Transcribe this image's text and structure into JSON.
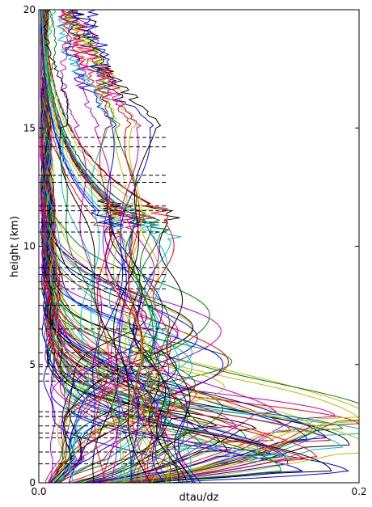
{
  "chart_data": {
    "type": "line",
    "title": "",
    "xlabel": "dtau/dz",
    "ylabel": "height (km)",
    "xlim": [
      0.0,
      0.2
    ],
    "ylim": [
      0,
      20
    ],
    "x_ticks": [
      0.0,
      0.2
    ],
    "x_tick_labels": [
      "0.0",
      "0.2"
    ],
    "y_ticks": [
      0,
      5,
      10,
      15,
      20
    ],
    "y_tick_labels": [
      "0",
      "5",
      "10",
      "15",
      "20"
    ],
    "grid": false,
    "legend": "none",
    "series_colors": [
      "#0000ff",
      "#008000",
      "#ff0000",
      "#00bfbf",
      "#bf00bf",
      "#bfbf00",
      "#000000"
    ],
    "profile_families": [
      {
        "kind": "lower_peak",
        "peak_height_range_km": [
          0.4,
          3.0
        ],
        "peak_value_range": [
          0.06,
          0.19
        ],
        "count": 45
      },
      {
        "kind": "mid_bulge",
        "bulge_height_range_km": [
          3.0,
          7.5
        ],
        "bulge_value_range": [
          0.04,
          0.11
        ],
        "count": 30
      },
      {
        "kind": "tropopause_kink",
        "kink_height_range_km": [
          10.6,
          11.7
        ],
        "kink_value_range": [
          0.04,
          0.08
        ],
        "count": 20
      },
      {
        "kind": "upper_drift",
        "value_at_15km_range": [
          0.005,
          0.07
        ],
        "count": 15
      }
    ],
    "reference_levels": {
      "style": "dashed",
      "color": "#000000",
      "heights_km": [
        0.8,
        1.3,
        1.9,
        2.1,
        2.4,
        2.8,
        3.0,
        4.3,
        4.6,
        4.9,
        5.5,
        6.5,
        7.5,
        8.2,
        8.5,
        8.8,
        9.1,
        10.6,
        11.0,
        11.5,
        11.7,
        12.7,
        13.0,
        14.2,
        14.6
      ],
      "x_extent": [
        0.0,
        0.08
      ]
    }
  }
}
